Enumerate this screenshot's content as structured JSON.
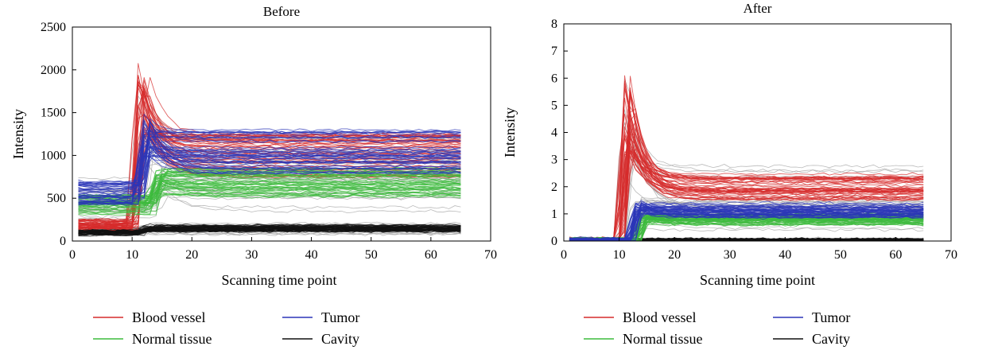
{
  "chart_data": [
    {
      "type": "line",
      "title": "Before",
      "xlabel": "Scanning time point",
      "ylabel": "Intensity",
      "xlim": [
        0,
        70
      ],
      "ylim": [
        0,
        2500
      ],
      "xticks": [
        "0",
        "10",
        "20",
        "30",
        "40",
        "50",
        "60",
        "70"
      ],
      "yticks": [
        "0",
        "500",
        "1000",
        "1500",
        "2000",
        "2500"
      ],
      "x_range_of_curves": [
        1,
        65
      ],
      "series": [
        {
          "name": "Blood vessel",
          "color": "#d62b2b",
          "baseline": 200,
          "peak_time": 11,
          "peak": 1700,
          "plateau": 1000
        },
        {
          "name": "Tumor",
          "color": "#2b35b8",
          "baseline": 560,
          "peak_time": 12,
          "peak": 1250,
          "plateau": 1050
        },
        {
          "name": "Normal tissue",
          "color": "#3dbb3d",
          "baseline": 430,
          "peak_time": 14,
          "peak": 640,
          "plateau": 680
        },
        {
          "name": "Cavity",
          "color": "#111111",
          "baseline": 100,
          "peak_time": 12,
          "peak": 110,
          "plateau": 150
        }
      ],
      "legend_position": "bottom"
    },
    {
      "type": "line",
      "title": "After",
      "xlabel": "Scanning time point",
      "ylabel": "Intensity",
      "xlim": [
        0,
        70
      ],
      "ylim": [
        0,
        8
      ],
      "xticks": [
        "0",
        "10",
        "20",
        "30",
        "40",
        "50",
        "60",
        "70"
      ],
      "yticks": [
        "0",
        "1",
        "2",
        "3",
        "4",
        "5",
        "6",
        "7",
        "8"
      ],
      "x_range_of_curves": [
        1,
        65
      ],
      "series": [
        {
          "name": "Blood vessel",
          "color": "#d62b2b",
          "baseline": 0.05,
          "peak_time": 11,
          "peak": 5.0,
          "plateau": 2.0
        },
        {
          "name": "Tumor",
          "color": "#2b35b8",
          "baseline": 0.05,
          "peak_time": 13,
          "peak": 1.2,
          "plateau": 1.15
        },
        {
          "name": "Normal tissue",
          "color": "#3dbb3d",
          "baseline": 0.05,
          "peak_time": 14,
          "peak": 0.8,
          "plateau": 0.8
        },
        {
          "name": "Cavity",
          "color": "#111111",
          "baseline": 0.02,
          "peak_time": 12,
          "peak": 0.05,
          "plateau": 0.05
        }
      ],
      "legend_position": "bottom"
    }
  ]
}
